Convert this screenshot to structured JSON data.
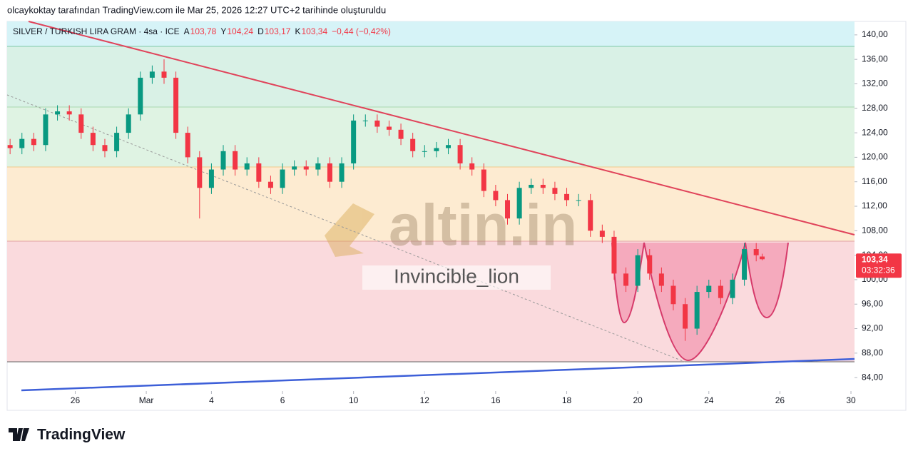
{
  "header": {
    "attribution": "olcaykoktay tarafından TradingView.com ile Mar 25, 2026 12:27 UTC+2 tarihinde oluşturuldu"
  },
  "chart_data": {
    "type": "candlestick",
    "title": "SILVER / TURKISH LIRA GRAM · 4sa · ICE",
    "ohlc_labels": [
      {
        "key": "A",
        "value": "103,78"
      },
      {
        "key": "Y",
        "value": "104,24"
      },
      {
        "key": "D",
        "value": "103,17"
      },
      {
        "key": "K",
        "value": "103,34"
      }
    ],
    "change": "−0,44 (−0,42%)",
    "x": [
      0,
      2,
      4,
      6,
      8,
      10,
      12,
      14,
      16,
      18,
      20,
      22,
      24,
      26,
      28,
      30,
      32,
      34,
      36,
      38,
      40,
      42,
      44,
      46,
      48,
      50,
      52,
      54,
      56,
      58,
      60,
      62,
      64,
      66,
      68,
      70,
      72,
      74,
      76,
      78,
      80,
      82,
      84,
      86,
      88,
      90,
      92,
      94,
      96,
      98,
      100,
      102,
      104,
      106,
      108,
      110,
      112,
      114,
      116,
      118,
      120,
      122,
      124,
      126,
      127
    ],
    "open": [
      122,
      121.5,
      123,
      122,
      127,
      127.5,
      127,
      124,
      122,
      121,
      124,
      127,
      133,
      134,
      133,
      124,
      120,
      115,
      118,
      121,
      118,
      119,
      116,
      115,
      118,
      118.5,
      118,
      119,
      116,
      119,
      126,
      126,
      125,
      124.5,
      123,
      121,
      121,
      121.5,
      122,
      119,
      118,
      114.5,
      113,
      110,
      115,
      115.5,
      115,
      114,
      113,
      113,
      108,
      107,
      101,
      99,
      104,
      101,
      99,
      96,
      92,
      98,
      99,
      97,
      100,
      105,
      103.78
    ],
    "high": [
      123,
      124,
      124,
      128,
      128.5,
      128.5,
      128,
      125,
      123,
      125,
      128,
      134,
      135,
      136,
      134,
      125,
      121,
      119,
      122,
      122,
      120,
      120,
      117,
      119,
      119.5,
      119.5,
      120,
      120,
      120,
      127,
      127,
      127,
      126,
      125.5,
      124,
      122,
      122.5,
      123,
      123,
      120,
      119,
      115.5,
      114,
      116,
      116.5,
      116.5,
      116,
      115,
      114,
      114,
      109,
      108,
      102,
      105,
      105,
      102,
      100,
      97,
      99,
      100,
      100,
      101,
      106,
      106,
      104.24
    ],
    "low": [
      120.5,
      120.5,
      121,
      121,
      126,
      126,
      123,
      121,
      120,
      120,
      123,
      126,
      132,
      132,
      123,
      119,
      110,
      114,
      117,
      117,
      117,
      115,
      114,
      114,
      117,
      117,
      117,
      115,
      115,
      118,
      125,
      124,
      123.5,
      122,
      120,
      120,
      120,
      120.5,
      118,
      117,
      113.5,
      112,
      109,
      109,
      114,
      114,
      113,
      112,
      112,
      107,
      106,
      100,
      98,
      98,
      100,
      98,
      95,
      90,
      91,
      97,
      96,
      96,
      99,
      103,
      103.17
    ],
    "close": [
      121.5,
      123,
      122,
      127,
      127.5,
      127,
      124,
      122,
      121,
      124,
      127,
      133,
      134,
      133,
      124,
      120,
      115,
      118,
      121,
      118,
      119,
      116,
      115,
      118,
      118.5,
      118,
      119,
      116,
      119,
      126,
      126,
      125,
      124.5,
      123,
      121,
      121,
      121.5,
      122,
      119,
      118,
      114.5,
      113,
      110,
      115,
      115.5,
      115,
      114,
      113,
      113,
      108,
      107,
      101,
      99,
      104,
      101,
      99,
      96,
      92,
      98,
      99,
      97,
      100,
      105,
      104,
      103.34
    ],
    "up_color": "#089981",
    "down_color": "#f23645",
    "xlim": [
      -0.5,
      142.6
    ],
    "xticks": [
      {
        "value": 11,
        "label": "26"
      },
      {
        "value": 23,
        "label": "Mar"
      },
      {
        "value": 34,
        "label": "4"
      },
      {
        "value": 46,
        "label": "6"
      },
      {
        "value": 58,
        "label": "10"
      },
      {
        "value": 70,
        "label": "12"
      },
      {
        "value": 82,
        "label": "16"
      },
      {
        "value": 94,
        "label": "18"
      },
      {
        "value": 106,
        "label": "20"
      },
      {
        "value": 118,
        "label": "24"
      },
      {
        "value": 130,
        "label": "26"
      },
      {
        "value": 142,
        "label": "30"
      }
    ],
    "ylim": [
      81.8,
      142.2
    ],
    "yticks": [
      {
        "value": 84,
        "label": "84,00"
      },
      {
        "value": 88,
        "label": "88,00"
      },
      {
        "value": 92,
        "label": "92,00"
      },
      {
        "value": 96,
        "label": "96,00"
      },
      {
        "value": 100,
        "label": "100,00"
      },
      {
        "value": 104,
        "label": "104,00"
      },
      {
        "value": 108,
        "label": "108,00"
      },
      {
        "value": 112,
        "label": "112,00"
      },
      {
        "value": 116,
        "label": "116,00"
      },
      {
        "value": 120,
        "label": "120,00"
      },
      {
        "value": 124,
        "label": "124,00"
      },
      {
        "value": 128,
        "label": "128,00"
      },
      {
        "value": 132,
        "label": "132,00"
      },
      {
        "value": 136,
        "label": "136,00"
      },
      {
        "value": 140,
        "label": "140,00"
      }
    ],
    "last_price": {
      "value": 103.34,
      "label": "103,34"
    },
    "countdown": "03:32:36",
    "watermark": "altin.in",
    "annotation": "Invincible_lion"
  },
  "footer": {
    "brand": "TradingView"
  }
}
